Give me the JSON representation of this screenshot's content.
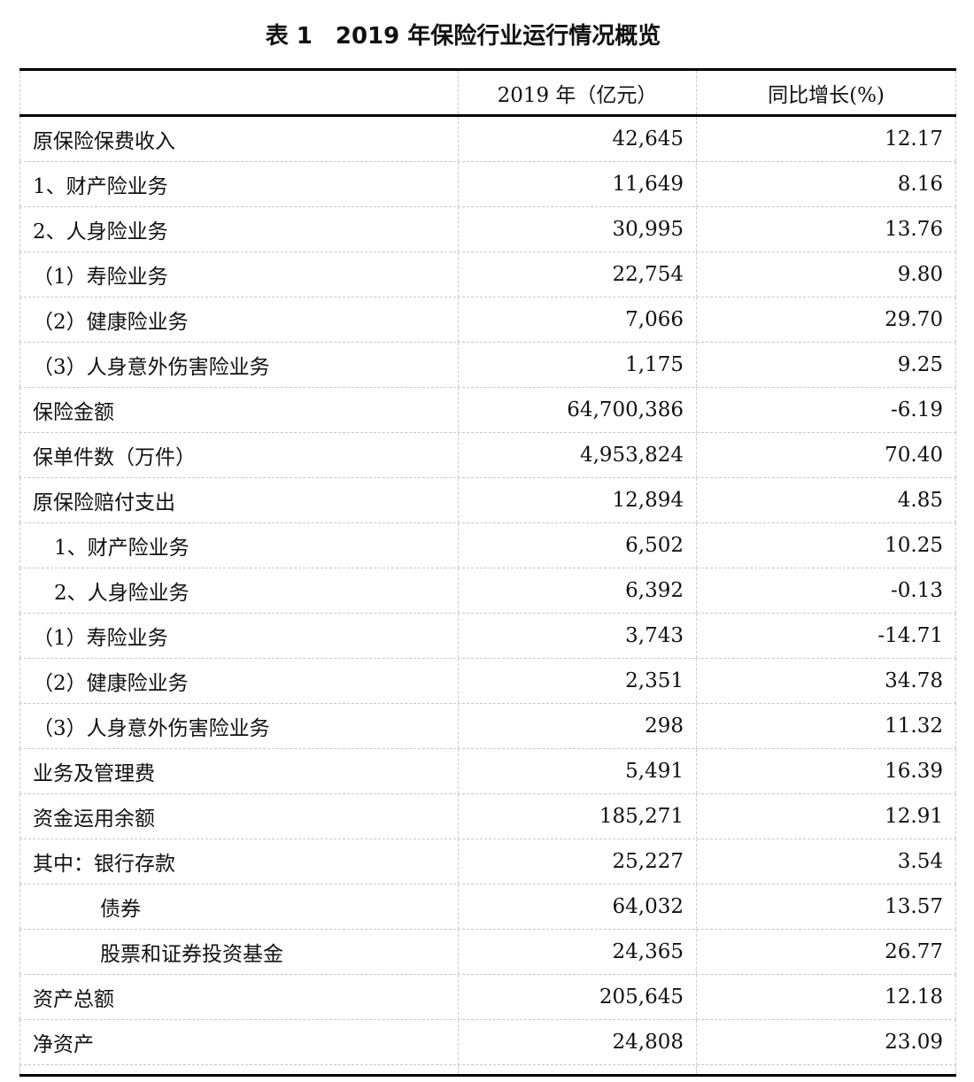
{
  "title": "表 1　2019 年保险行业运行情况概览",
  "headers": [
    "",
    "2019 年（亿元）",
    "同比增长(%)"
  ],
  "rows": [
    {
      "label": "原保险保费收入",
      "value": "42,645",
      "growth": "12.17",
      "indent": 0
    },
    {
      "label": "1、财产险业务",
      "value": "11,649",
      "growth": "8.16",
      "indent": 0
    },
    {
      "label": "2、人身险业务",
      "value": "30,995",
      "growth": "13.76",
      "indent": 0
    },
    {
      "label": "（1）寿险业务",
      "value": "22,754",
      "growth": "9.80",
      "indent": 0
    },
    {
      "label": "（2）健康险业务",
      "value": "7,066",
      "growth": "29.70",
      "indent": 0
    },
    {
      "label": "（3）人身意外伤害险业务",
      "value": "1,175",
      "growth": "9.25",
      "indent": 0
    },
    {
      "label": "保险金额",
      "value": "64,700,386",
      "growth": "-6.19",
      "indent": 0
    },
    {
      "label": "保单件数（万件）",
      "value": "4,953,824",
      "growth": "70.40",
      "indent": 0
    },
    {
      "label": "原保险赔付支出",
      "value": "12,894",
      "growth": "4.85",
      "indent": 0
    },
    {
      "label": "1、财产险业务",
      "value": "6,502",
      "growth": "10.25",
      "indent": 1
    },
    {
      "label": "2、人身险业务",
      "value": "6,392",
      "growth": "-0.13",
      "indent": 1
    },
    {
      "label": "（1）寿险业务",
      "value": "3,743",
      "growth": "-14.71",
      "indent": 0
    },
    {
      "label": "（2）健康险业务",
      "value": "2,351",
      "growth": "34.78",
      "indent": 0
    },
    {
      "label": "（3）人身意外伤害险业务",
      "value": "298",
      "growth": "11.32",
      "indent": 0
    },
    {
      "label": "业务及管理费",
      "value": "5,491",
      "growth": "16.39",
      "indent": 0
    },
    {
      "label": "资金运用余额",
      "value": "185,271",
      "growth": "12.91",
      "indent": 0
    },
    {
      "label": "其中：银行存款",
      "value": "25,227",
      "growth": "3.54",
      "indent": 0
    },
    {
      "label": "债券",
      "value": "64,032",
      "growth": "13.57",
      "indent": 2
    },
    {
      "label": "股票和证券投资基金",
      "value": "24,365",
      "growth": "26.77",
      "indent": 2
    },
    {
      "label": "资产总额",
      "value": "205,645",
      "growth": "12.18",
      "indent": 0
    },
    {
      "label": "净资产",
      "value": "24,808",
      "growth": "23.09",
      "indent": 0
    }
  ]
}
